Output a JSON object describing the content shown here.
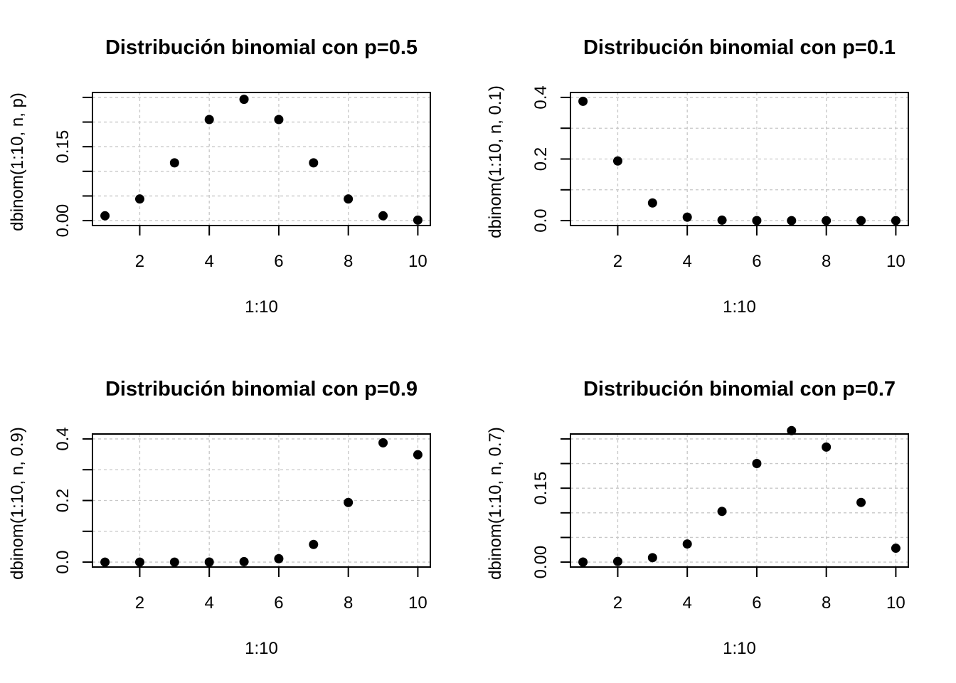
{
  "chart_data": [
    {
      "type": "scatter",
      "title": "Distribución binomial con p=0.5",
      "xlabel": "1:10",
      "ylabel": "dbinom(1:10, n, p)",
      "x": [
        1,
        2,
        3,
        4,
        5,
        6,
        7,
        8,
        9,
        10
      ],
      "y": [
        0.0098,
        0.0439,
        0.1172,
        0.2051,
        0.2461,
        0.2051,
        0.1172,
        0.0439,
        0.0098,
        0.001
      ],
      "xlim": [
        1,
        10
      ],
      "ylim": [
        0,
        0.25
      ],
      "x_ticks": [
        2,
        4,
        6,
        8,
        10
      ],
      "x_tick_labels": [
        "2",
        "4",
        "6",
        "8",
        "10"
      ],
      "y_ticks": [
        0,
        0.05,
        0.1,
        0.15,
        0.2,
        0.25
      ],
      "y_tick_labels": [
        "0.00",
        "",
        "",
        "0.15",
        "",
        ""
      ],
      "grid": true
    },
    {
      "type": "scatter",
      "title": "Distribución binomial con p=0.1",
      "xlabel": "1:10",
      "ylabel": "dbinom(1:10, n, 0.1)",
      "x": [
        1,
        2,
        3,
        4,
        5,
        6,
        7,
        8,
        9,
        10
      ],
      "y": [
        0.3874,
        0.1937,
        0.0574,
        0.0112,
        0.0015,
        0.0001,
        0.0,
        0.0,
        0.0,
        0.0
      ],
      "xlim": [
        1,
        10
      ],
      "ylim": [
        0,
        0.4
      ],
      "x_ticks": [
        2,
        4,
        6,
        8,
        10
      ],
      "x_tick_labels": [
        "2",
        "4",
        "6",
        "8",
        "10"
      ],
      "y_ticks": [
        0,
        0.1,
        0.2,
        0.3,
        0.4
      ],
      "y_tick_labels": [
        "0.0",
        "",
        "0.2",
        "",
        "0.4"
      ],
      "grid": true
    },
    {
      "type": "scatter",
      "title": "Distribución binomial con p=0.9",
      "xlabel": "1:10",
      "ylabel": "dbinom(1:10, n, 0.9)",
      "x": [
        1,
        2,
        3,
        4,
        5,
        6,
        7,
        8,
        9,
        10
      ],
      "y": [
        0.0,
        0.0,
        0.0,
        0.0001,
        0.0015,
        0.0112,
        0.0574,
        0.1937,
        0.3874,
        0.3487
      ],
      "xlim": [
        1,
        10
      ],
      "ylim": [
        0,
        0.4
      ],
      "x_ticks": [
        2,
        4,
        6,
        8,
        10
      ],
      "x_tick_labels": [
        "2",
        "4",
        "6",
        "8",
        "10"
      ],
      "y_ticks": [
        0,
        0.1,
        0.2,
        0.3,
        0.4
      ],
      "y_tick_labels": [
        "0.0",
        "",
        "0.2",
        "",
        "0.4"
      ],
      "grid": true
    },
    {
      "type": "scatter",
      "title": "Distribución binomial con p=0.7",
      "xlabel": "1:10",
      "ylabel": "dbinom(1:10, n, 0.7)",
      "x": [
        1,
        2,
        3,
        4,
        5,
        6,
        7,
        8,
        9,
        10
      ],
      "y": [
        0.0001,
        0.0014,
        0.009,
        0.0368,
        0.1029,
        0.2001,
        0.2668,
        0.2335,
        0.1211,
        0.0282
      ],
      "xlim": [
        1,
        10
      ],
      "ylim": [
        0,
        0.25
      ],
      "x_ticks": [
        2,
        4,
        6,
        8,
        10
      ],
      "x_tick_labels": [
        "2",
        "4",
        "6",
        "8",
        "10"
      ],
      "y_ticks": [
        0,
        0.05,
        0.1,
        0.15,
        0.2,
        0.25
      ],
      "y_tick_labels": [
        "0.00",
        "",
        "",
        "0.15",
        "",
        ""
      ],
      "grid": true
    }
  ]
}
